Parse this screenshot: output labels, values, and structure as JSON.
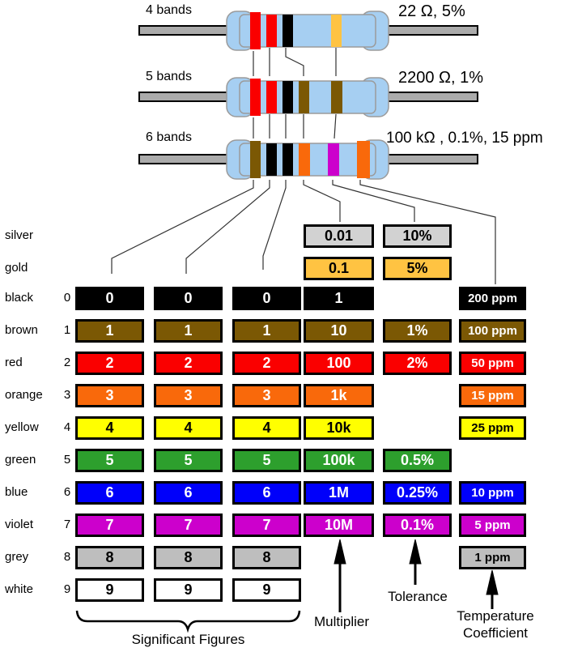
{
  "resistor_section": {
    "resistors": [
      {
        "label": "4 bands",
        "value": "22 Ω, 5%",
        "bands": [
          "red",
          "red",
          "black",
          "gold"
        ]
      },
      {
        "label": "5 bands",
        "value": "2200 Ω, 1%",
        "bands": [
          "red",
          "red",
          "black",
          "brown",
          "brown"
        ]
      },
      {
        "label": "6 bands",
        "value": "100 kΩ , 0.1%, 15 ppm",
        "bands": [
          "brown",
          "black",
          "black",
          "orange",
          "violet",
          "orange"
        ]
      }
    ],
    "body_color": "#A6CFF2",
    "body_border_color": "#9B9B9B",
    "lead_color": "#ABABAB"
  },
  "band_colors": {
    "black": "#000000",
    "brown": "#7B5804",
    "red": "#FA0000",
    "orange": "#F9690B",
    "yellow": "#FFFF00",
    "green": "#2D9F2D",
    "blue": "#0000FA",
    "violet": "#CC00CC",
    "grey": "#BEBEBE",
    "white": "#FFFFFF",
    "gold": "#FFC342",
    "silver": "#D2D2D2"
  },
  "table": {
    "columns": [
      "sig1",
      "sig2",
      "sig3",
      "multiplier",
      "tolerance",
      "tempco"
    ],
    "rows": [
      {
        "label": "silver",
        "digit": "",
        "bg": "#D2D2D2",
        "fg": "#000000",
        "cells": [
          "",
          "",
          "",
          "0.01",
          "10%",
          ""
        ]
      },
      {
        "label": "gold",
        "digit": "",
        "bg": "#FFC342",
        "fg": "#000000",
        "cells": [
          "",
          "",
          "",
          "0.1",
          "5%",
          ""
        ]
      },
      {
        "label": "black",
        "digit": "0",
        "bg": "#000000",
        "fg": "#FFFFFF",
        "cells": [
          "0",
          "0",
          "0",
          "1",
          "",
          "200 ppm"
        ]
      },
      {
        "label": "brown",
        "digit": "1",
        "bg": "#7B5804",
        "fg": "#FFFFFF",
        "cells": [
          "1",
          "1",
          "1",
          "10",
          "1%",
          "100 ppm"
        ]
      },
      {
        "label": "red",
        "digit": "2",
        "bg": "#FA0000",
        "fg": "#FFFFFF",
        "cells": [
          "2",
          "2",
          "2",
          "100",
          "2%",
          "50 ppm"
        ]
      },
      {
        "label": "orange",
        "digit": "3",
        "bg": "#F9690B",
        "fg": "#FFFFFF",
        "cells": [
          "3",
          "3",
          "3",
          "1k",
          "",
          "15 ppm"
        ]
      },
      {
        "label": "yellow",
        "digit": "4",
        "bg": "#FFFF00",
        "fg": "#000000",
        "cells": [
          "4",
          "4",
          "4",
          "10k",
          "",
          "25 ppm"
        ]
      },
      {
        "label": "green",
        "digit": "5",
        "bg": "#2D9F2D",
        "fg": "#FFFFFF",
        "cells": [
          "5",
          "5",
          "5",
          "100k",
          "0.5%",
          ""
        ]
      },
      {
        "label": "blue",
        "digit": "6",
        "bg": "#0000FA",
        "fg": "#FFFFFF",
        "cells": [
          "6",
          "6",
          "6",
          "1M",
          "0.25%",
          "10 ppm"
        ]
      },
      {
        "label": "violet",
        "digit": "7",
        "bg": "#CC00CC",
        "fg": "#FFFFFF",
        "cells": [
          "7",
          "7",
          "7",
          "10M",
          "0.1%",
          "5 ppm"
        ]
      },
      {
        "label": "grey",
        "digit": "8",
        "bg": "#BEBEBE",
        "fg": "#000000",
        "cells": [
          "8",
          "8",
          "8",
          "",
          "",
          "1 ppm"
        ]
      },
      {
        "label": "white",
        "digit": "9",
        "bg": "#FFFFFF",
        "fg": "#000000",
        "cells": [
          "9",
          "9",
          "9",
          "",
          "",
          ""
        ]
      }
    ]
  },
  "footer": {
    "significant_figures": "Significant Figures",
    "multiplier": "Multiplier",
    "tolerance": "Tolerance",
    "tempco_line1": "Temperature",
    "tempco_line2": "Coefficient"
  }
}
